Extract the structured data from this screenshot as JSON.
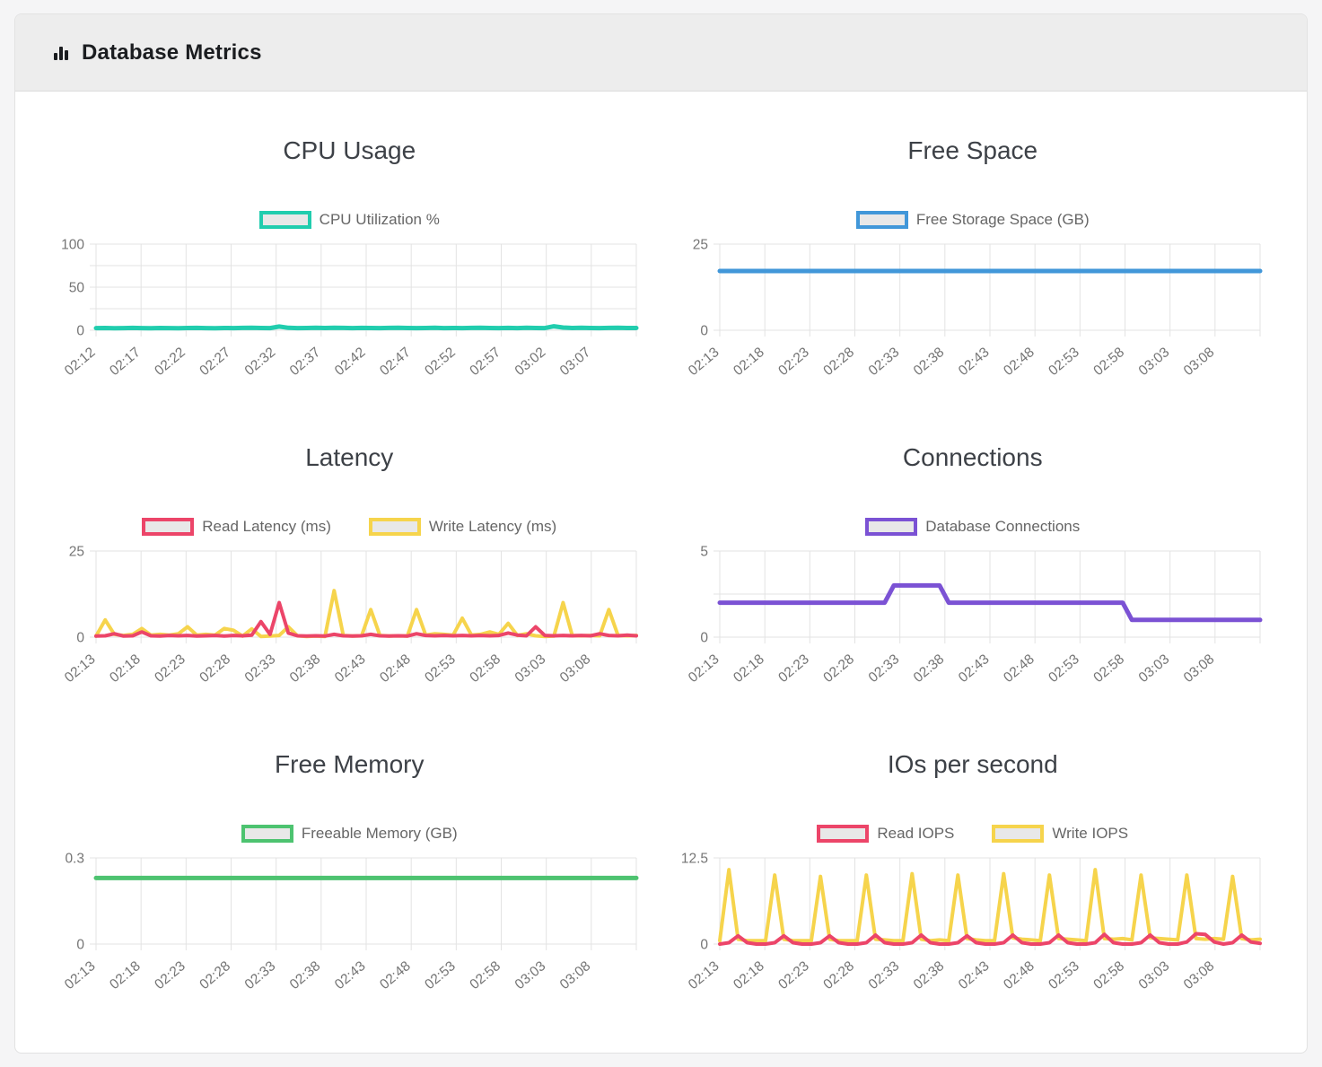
{
  "header": {
    "title": "Database Metrics",
    "icon": "bar-chart-icon"
  },
  "theme": {
    "page_bg": "#f5f5f6",
    "card_bg": "#ffffff",
    "header_bg": "#ededed",
    "grid_color": "#e3e3e3",
    "tick_color": "#757575",
    "title_color": "#3d4147",
    "legend_text_color": "#666666",
    "legend_swatch_fill": "#e8e8e8"
  },
  "chart_data": [
    {
      "type": "line",
      "title": "CPU Usage",
      "x_tick_labels": [
        "02:12",
        "02:17",
        "02:22",
        "02:27",
        "02:32",
        "02:37",
        "02:42",
        "02:47",
        "02:52",
        "02:57",
        "03:02",
        "03:07"
      ],
      "x_total_min": 60,
      "x_tick_step": 5,
      "ylim": [
        0,
        100
      ],
      "y_grid": [
        0,
        25,
        50,
        75,
        100
      ],
      "y_labels": [
        "0",
        "50",
        "100"
      ],
      "stroke_width": 5,
      "series": [
        {
          "name": "CPU Utilization %",
          "color": "#21cdae",
          "values": [
            2.5,
            2.6,
            2.4,
            2.5,
            2.7,
            2.5,
            2.4,
            2.6,
            2.5,
            2.4,
            2.6,
            2.7,
            2.5,
            2.4,
            2.6,
            2.5,
            2.7,
            2.9,
            2.6,
            2.5,
            4.3,
            2.8,
            2.5,
            2.6,
            2.8,
            2.6,
            2.9,
            2.7,
            2.5,
            2.7,
            2.6,
            2.5,
            2.7,
            2.9,
            2.6,
            2.5,
            2.6,
            2.8,
            2.5,
            2.6,
            2.5,
            2.7,
            2.8,
            2.6,
            2.5,
            2.7,
            2.5,
            2.8,
            2.6,
            2.5,
            4.6,
            3.1,
            2.6,
            2.8,
            2.6,
            2.5,
            2.7,
            2.8,
            2.6,
            2.6
          ]
        }
      ]
    },
    {
      "type": "line",
      "title": "Free Space",
      "x_tick_labels": [
        "02:13",
        "02:18",
        "02:23",
        "02:28",
        "02:33",
        "02:38",
        "02:43",
        "02:48",
        "02:53",
        "02:58",
        "03:03",
        "03:08"
      ],
      "x_total_min": 60,
      "x_tick_step": 5,
      "ylim": [
        0,
        25
      ],
      "y_grid": [
        0,
        25
      ],
      "y_labels": [
        "0",
        "25"
      ],
      "stroke_width": 5,
      "series": [
        {
          "name": "Free Storage Space (GB)",
          "color": "#4197d9",
          "constant": 17.2,
          "points": 60
        }
      ]
    },
    {
      "type": "line",
      "title": "Latency",
      "x_tick_labels": [
        "02:13",
        "02:18",
        "02:23",
        "02:28",
        "02:33",
        "02:38",
        "02:43",
        "02:48",
        "02:53",
        "02:58",
        "03:03",
        "03:08"
      ],
      "x_total_min": 60,
      "x_tick_step": 5,
      "ylim": [
        0,
        25
      ],
      "y_grid": [
        0,
        25
      ],
      "y_labels": [
        "0",
        "25"
      ],
      "stroke_width": 4,
      "series": [
        {
          "name": "Read Latency (ms)",
          "color": "#ec4569",
          "values": [
            0.3,
            0.4,
            1.0,
            0.3,
            0.4,
            1.5,
            0.4,
            0.3,
            0.5,
            0.4,
            0.5,
            0.3,
            0.4,
            0.5,
            0.3,
            0.5,
            0.4,
            0.6,
            4.5,
            0.8,
            10.0,
            1.2,
            0.4,
            0.3,
            0.4,
            0.3,
            0.8,
            0.4,
            0.3,
            0.4,
            0.8,
            0.4,
            0.3,
            0.4,
            0.3,
            1.0,
            0.5,
            0.4,
            0.5,
            0.4,
            0.5,
            0.4,
            0.5,
            0.4,
            0.5,
            1.2,
            0.6,
            0.4,
            3.0,
            0.5,
            0.4,
            0.5,
            0.4,
            0.5,
            0.4,
            1.0,
            0.5,
            0.4,
            0.6,
            0.4
          ]
        },
        {
          "name": "Write Latency (ms)",
          "color": "#f6d44c",
          "values": [
            0.3,
            5.0,
            0.8,
            0.5,
            0.8,
            2.5,
            0.6,
            0.8,
            0.6,
            1.0,
            3.0,
            0.6,
            0.8,
            0.6,
            2.5,
            2.0,
            0.3,
            2.4,
            0.2,
            0.3,
            0.5,
            3.0,
            0.4,
            0.2,
            0.3,
            0.2,
            13.5,
            0.5,
            0.3,
            0.4,
            8.0,
            0.5,
            0.3,
            0.4,
            0.3,
            8.0,
            0.6,
            1.0,
            0.8,
            0.6,
            5.5,
            0.6,
            0.8,
            1.5,
            0.8,
            4.0,
            0.5,
            1.0,
            0.4,
            0.2,
            0.3,
            10.0,
            0.5,
            0.4,
            0.5,
            0.4,
            8.0,
            0.5,
            0.4,
            0.5
          ]
        }
      ]
    },
    {
      "type": "line",
      "title": "Connections",
      "x_tick_labels": [
        "02:13",
        "02:18",
        "02:23",
        "02:28",
        "02:33",
        "02:38",
        "02:43",
        "02:48",
        "02:53",
        "02:58",
        "03:03",
        "03:08"
      ],
      "x_total_min": 60,
      "x_tick_step": 5,
      "ylim": [
        0,
        5
      ],
      "y_grid": [
        0,
        2.5,
        5
      ],
      "y_labels": [
        "0",
        "5"
      ],
      "stroke_width": 5,
      "series": [
        {
          "name": "Database Connections",
          "color": "#7b52d4",
          "values": [
            2,
            2,
            2,
            2,
            2,
            2,
            2,
            2,
            2,
            2,
            2,
            2,
            2,
            2,
            2,
            2,
            2,
            2,
            2,
            3,
            3,
            3,
            3,
            3,
            3,
            2,
            2,
            2,
            2,
            2,
            2,
            2,
            2,
            2,
            2,
            2,
            2,
            2,
            2,
            2,
            2,
            2,
            2,
            2,
            2,
            1,
            1,
            1,
            1,
            1,
            1,
            1,
            1,
            1,
            1,
            1,
            1,
            1,
            1,
            1
          ]
        }
      ]
    },
    {
      "type": "line",
      "title": "Free Memory",
      "x_tick_labels": [
        "02:13",
        "02:18",
        "02:23",
        "02:28",
        "02:33",
        "02:38",
        "02:43",
        "02:48",
        "02:53",
        "02:58",
        "03:03",
        "03:08"
      ],
      "x_total_min": 60,
      "x_tick_step": 5,
      "ylim": [
        0,
        0.3
      ],
      "y_grid": [
        0,
        0.3
      ],
      "y_labels": [
        "0",
        "0.3"
      ],
      "stroke_width": 5,
      "series": [
        {
          "name": "Freeable Memory (GB)",
          "color": "#4dc370",
          "constant": 0.23,
          "points": 60
        }
      ]
    },
    {
      "type": "line",
      "title": "IOs per second",
      "x_tick_labels": [
        "02:13",
        "02:18",
        "02:23",
        "02:28",
        "02:33",
        "02:38",
        "02:43",
        "02:48",
        "02:53",
        "02:58",
        "03:03",
        "03:08"
      ],
      "x_total_min": 60,
      "x_tick_step": 5,
      "ylim": [
        0,
        12.5
      ],
      "y_grid": [
        0,
        12.5
      ],
      "y_labels": [
        "0",
        "12.5"
      ],
      "stroke_width": 4,
      "series": [
        {
          "name": "Read IOPS",
          "color": "#ec4569",
          "values": [
            0,
            0.2,
            1.2,
            0.2,
            0,
            0,
            0.2,
            1.2,
            0.2,
            0,
            0,
            0.2,
            1.2,
            0.2,
            0,
            0,
            0.2,
            1.3,
            0.2,
            0,
            0,
            0.2,
            1.3,
            0.2,
            0,
            0,
            0.2,
            1.2,
            0.2,
            0,
            0,
            0.2,
            1.3,
            0.2,
            0,
            0,
            0.2,
            1.3,
            0.2,
            0,
            0,
            0.2,
            1.4,
            0.2,
            0,
            0,
            0.2,
            1.3,
            0.2,
            0,
            0,
            0.3,
            1.5,
            1.4,
            0.3,
            0,
            0.2,
            1.3,
            0.3,
            0.1
          ]
        },
        {
          "name": "Write IOPS",
          "color": "#f6d44c",
          "values": [
            0.5,
            10.8,
            0.7,
            0.5,
            0.5,
            0.5,
            10.0,
            0.7,
            0.5,
            0.5,
            0.5,
            9.8,
            0.7,
            0.5,
            0.5,
            0.5,
            10.0,
            0.7,
            0.6,
            0.5,
            0.5,
            10.2,
            0.7,
            0.5,
            0.6,
            0.5,
            10.0,
            0.8,
            0.6,
            0.5,
            0.5,
            10.2,
            0.9,
            0.7,
            0.6,
            0.5,
            10.0,
            0.8,
            0.7,
            0.6,
            0.5,
            10.8,
            0.8,
            0.7,
            0.8,
            0.6,
            10.0,
            0.9,
            0.8,
            0.7,
            0.6,
            10.0,
            0.8,
            0.7,
            0.8,
            0.7,
            9.8,
            0.8,
            0.6,
            0.7
          ]
        }
      ]
    }
  ]
}
